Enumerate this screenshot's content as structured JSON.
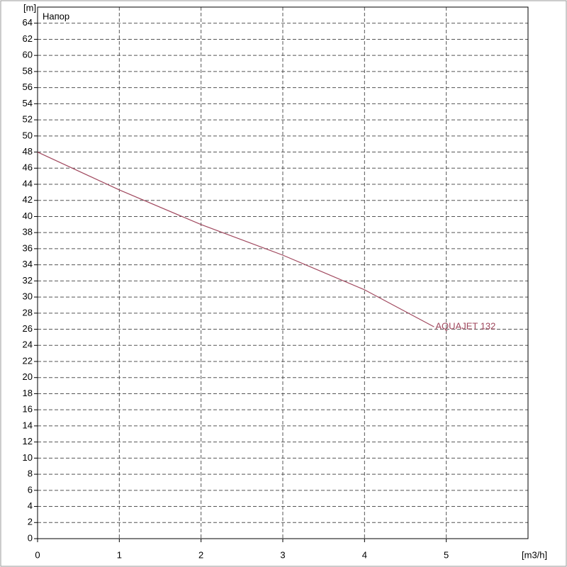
{
  "chart_data": {
    "type": "line",
    "title": "Напор",
    "y_label": "[m]",
    "x_label": "[m3/h]",
    "x": [
      0,
      1,
      2,
      3,
      4,
      4.85
    ],
    "series": [
      {
        "name": "AQUAJET 132",
        "color": "#a0485e",
        "values": [
          48,
          43.3,
          39,
          35.2,
          30.9,
          26.3
        ]
      }
    ],
    "xlim": [
      0,
      6
    ],
    "xticks": [
      0,
      1,
      2,
      3,
      4,
      5
    ],
    "ylim": [
      0,
      66
    ],
    "yticks": [
      0,
      2,
      4,
      6,
      8,
      10,
      12,
      14,
      16,
      18,
      20,
      22,
      24,
      26,
      28,
      30,
      32,
      34,
      36,
      38,
      40,
      42,
      44,
      46,
      48,
      50,
      52,
      54,
      56,
      58,
      60,
      62,
      64
    ],
    "grid": true
  }
}
